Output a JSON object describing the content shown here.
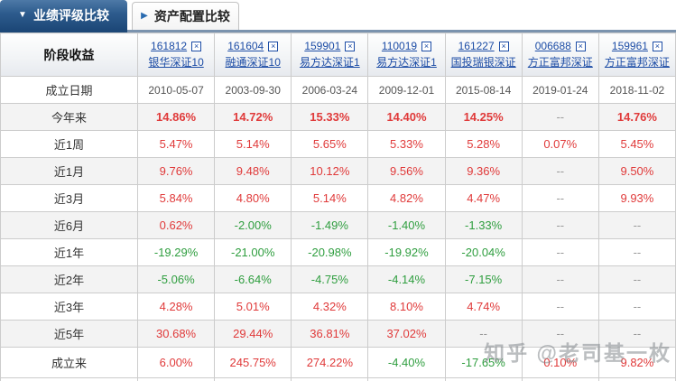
{
  "tabs": {
    "active_label": "业绩评级比较",
    "inactive_label": "资产配置比较",
    "active_arrow": "▼",
    "inactive_arrow": "▶"
  },
  "table": {
    "corner_label": "阶段收益",
    "funds": [
      {
        "code": "161812",
        "name": "银华深证10"
      },
      {
        "code": "161604",
        "name": "融通深证10"
      },
      {
        "code": "159901",
        "name": "易方达深证1"
      },
      {
        "code": "110019",
        "name": "易方达深证1"
      },
      {
        "code": "161227",
        "name": "国投瑞银深证"
      },
      {
        "code": "006688",
        "name": "方正富邦深证"
      },
      {
        "code": "159961",
        "name": "方正富邦深证"
      }
    ],
    "close_icon_glyph": "×",
    "rows": [
      {
        "label": "成立日期",
        "type": "date",
        "bold": false,
        "values": [
          "2010-05-07",
          "2003-09-30",
          "2006-03-24",
          "2009-12-01",
          "2015-08-14",
          "2019-01-24",
          "2018-11-02"
        ]
      },
      {
        "label": "今年来",
        "type": "pct",
        "bold": true,
        "values": [
          "14.86%",
          "14.72%",
          "15.33%",
          "14.40%",
          "14.25%",
          "--",
          "14.76%"
        ]
      },
      {
        "label": "近1周",
        "type": "pct",
        "bold": false,
        "values": [
          "5.47%",
          "5.14%",
          "5.65%",
          "5.33%",
          "5.28%",
          "0.07%",
          "5.45%"
        ]
      },
      {
        "label": "近1月",
        "type": "pct",
        "bold": false,
        "values": [
          "9.76%",
          "9.48%",
          "10.12%",
          "9.56%",
          "9.36%",
          "--",
          "9.50%"
        ]
      },
      {
        "label": "近3月",
        "type": "pct",
        "bold": false,
        "values": [
          "5.84%",
          "4.80%",
          "5.14%",
          "4.82%",
          "4.47%",
          "--",
          "9.93%"
        ]
      },
      {
        "label": "近6月",
        "type": "pct",
        "bold": false,
        "values": [
          "0.62%",
          "-2.00%",
          "-1.49%",
          "-1.40%",
          "-1.33%",
          "--",
          "--"
        ]
      },
      {
        "label": "近1年",
        "type": "pct",
        "bold": false,
        "values": [
          "-19.29%",
          "-21.00%",
          "-20.98%",
          "-19.92%",
          "-20.04%",
          "--",
          "--"
        ]
      },
      {
        "label": "近2年",
        "type": "pct",
        "bold": false,
        "values": [
          "-5.06%",
          "-6.64%",
          "-4.75%",
          "-4.14%",
          "-7.15%",
          "--",
          "--"
        ]
      },
      {
        "label": "近3年",
        "type": "pct",
        "bold": false,
        "values": [
          "4.28%",
          "5.01%",
          "4.32%",
          "8.10%",
          "4.74%",
          "--",
          "--"
        ]
      },
      {
        "label": "近5年",
        "type": "pct",
        "bold": false,
        "values": [
          "30.68%",
          "29.44%",
          "36.81%",
          "37.02%",
          "--",
          "--",
          "--"
        ]
      },
      {
        "label": "成立来",
        "type": "pct",
        "bold": false,
        "values": [
          "6.00%",
          "245.75%",
          "274.22%",
          "-4.40%",
          "-17.65%",
          "0.10%",
          "9.82%"
        ]
      }
    ]
  },
  "watermark": "知乎 @老司基一枚",
  "colors": {
    "positive": "#e03a3a",
    "negative": "#2f9e3f",
    "na": "#999999",
    "link": "#1d4da6",
    "active_tab": "#1d4878"
  }
}
